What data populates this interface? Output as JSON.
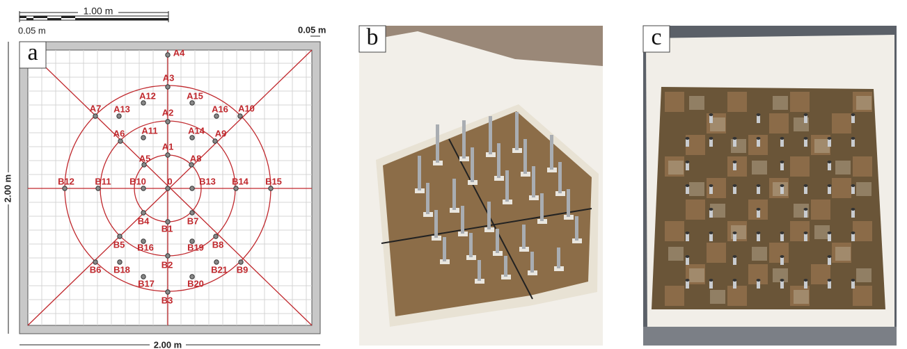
{
  "scale_bar": {
    "label": "1.00 m",
    "end_label": "0.05 m"
  },
  "panel_a": {
    "label": "a",
    "right_margin": "0.05 m",
    "height": "2.00 m",
    "width": "2.00 m",
    "points": [
      "A1",
      "A2",
      "A3",
      "A4",
      "A5",
      "A6",
      "A7",
      "A8",
      "A9",
      "A10",
      "A11",
      "A12",
      "A13",
      "A14",
      "A15",
      "A16",
      "B1",
      "B2",
      "B3",
      "B4",
      "B5",
      "B6",
      "B7",
      "B8",
      "B9",
      "B10",
      "B11",
      "B12",
      "B13",
      "B14",
      "B15",
      "B16",
      "B17",
      "B18",
      "B19",
      "B20",
      "B21",
      "0"
    ]
  },
  "panel_b": {
    "label": "b"
  },
  "panel_c": {
    "label": "c"
  }
}
